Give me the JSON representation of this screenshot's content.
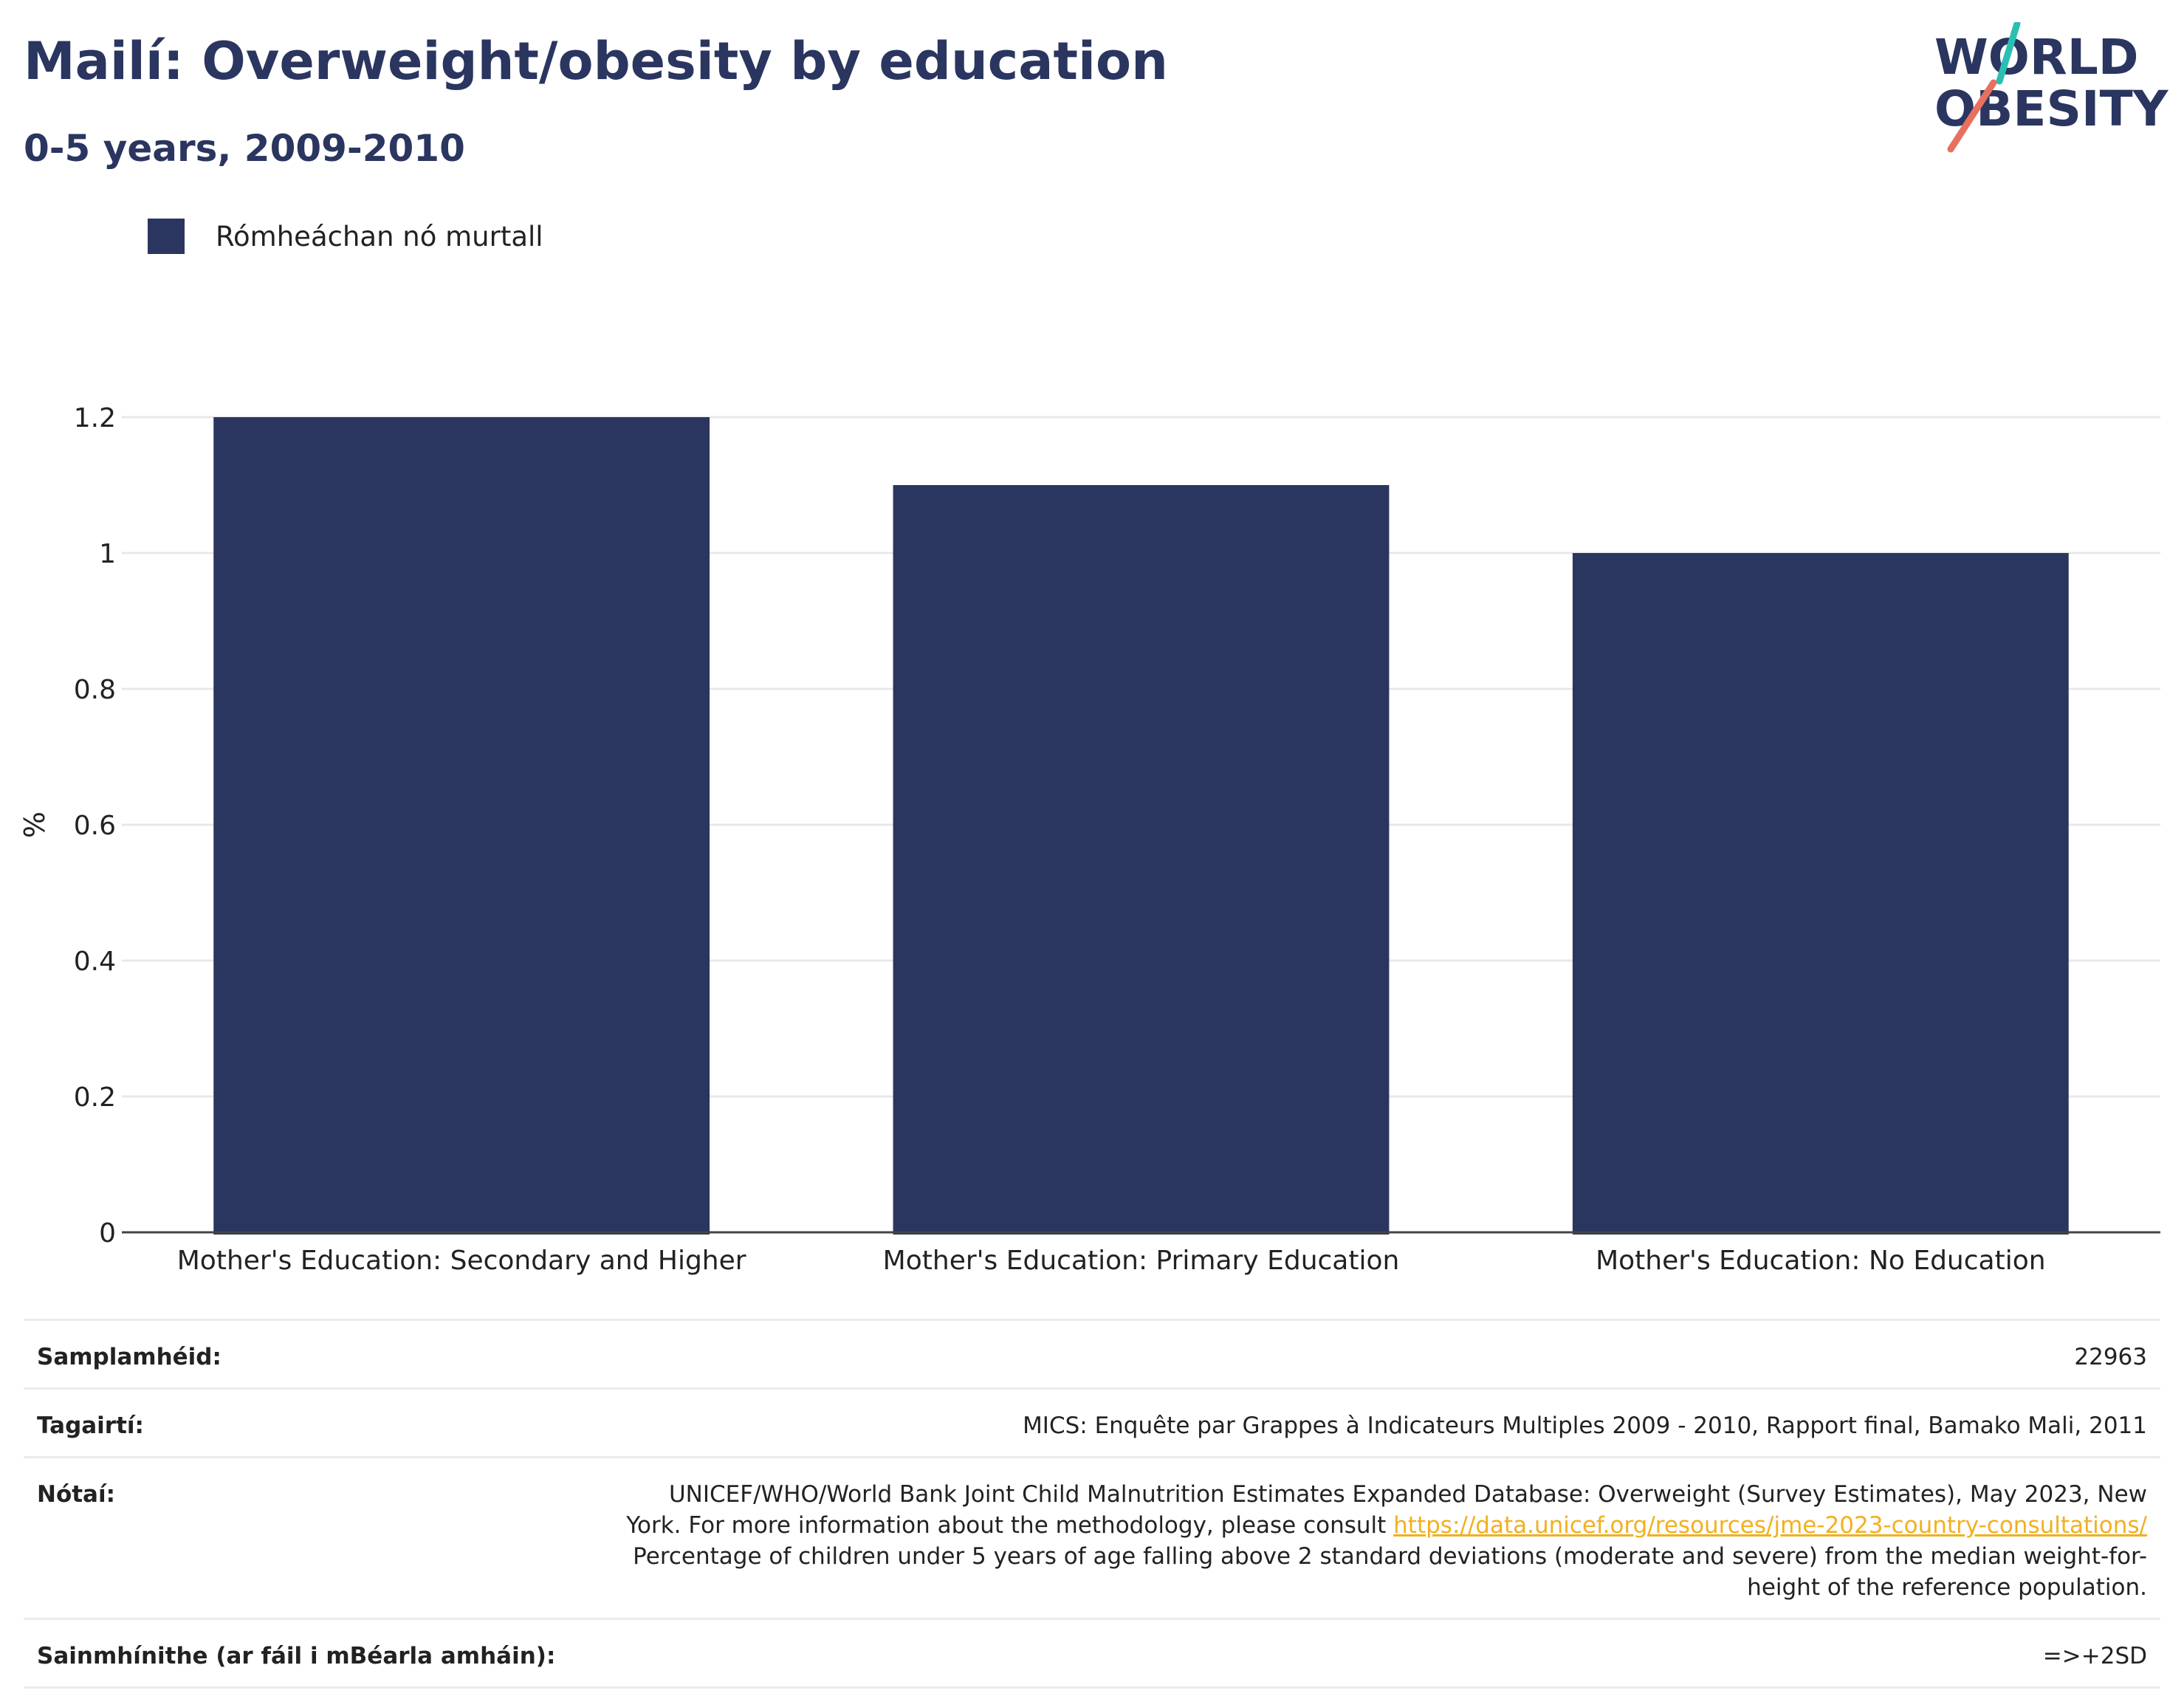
{
  "header": {
    "title": "Mailí: Overweight/obesity by education",
    "subtitle": "0-5 years, 2009-2010"
  },
  "logo": {
    "line1": "WORLD",
    "line2": "OBESITY",
    "accent_colors": [
      "#2bbfb3",
      "#e8705f"
    ]
  },
  "chart_data": {
    "type": "bar",
    "categories": [
      "Mother's Education: Secondary and Higher",
      "Mother's Education: Primary Education",
      "Mother's Education: No Education"
    ],
    "series": [
      {
        "name": "Rómheáchan nó murtall",
        "values": [
          1.2,
          1.1,
          1.0
        ],
        "color": "#2a3560"
      }
    ],
    "ylabel": "%",
    "xlabel": "",
    "ylim": [
      0,
      1.2
    ],
    "yticks": [
      0,
      0.2,
      0.4,
      0.6,
      0.8,
      1,
      1.2
    ],
    "ytick_labels": [
      "0",
      "0.2",
      "0.4",
      "0.6",
      "0.8",
      "1",
      "1.2"
    ],
    "grid": true,
    "legend_position": "top-left"
  },
  "info": {
    "sample_label": "Samplamhéid:",
    "sample_value": "22963",
    "refs_label": "Tagairtí:",
    "refs_value": "MICS: Enquête par Grappes à Indicateurs Multiples 2009 - 2010, Rapport final, Bamako Mali, 2011",
    "notes_label": "Nótaí:",
    "notes_text1": "UNICEF/WHO/World Bank Joint Child Malnutrition Estimates Expanded Database: Overweight (Survey Estimates), May 2023, New York. For more information about the methodology, please consult",
    "notes_link": "https://data.unicef.org/resources/jme-2023-country-consultations/",
    "notes_text2": "Percentage of children under 5 years of age falling above 2 standard deviations (moderate and severe) from the median weight-for-height of the reference population.",
    "def_label": "Sainmhínithe (ar fáil i mBéarla amháin):",
    "def_value": "=>+2SD"
  }
}
